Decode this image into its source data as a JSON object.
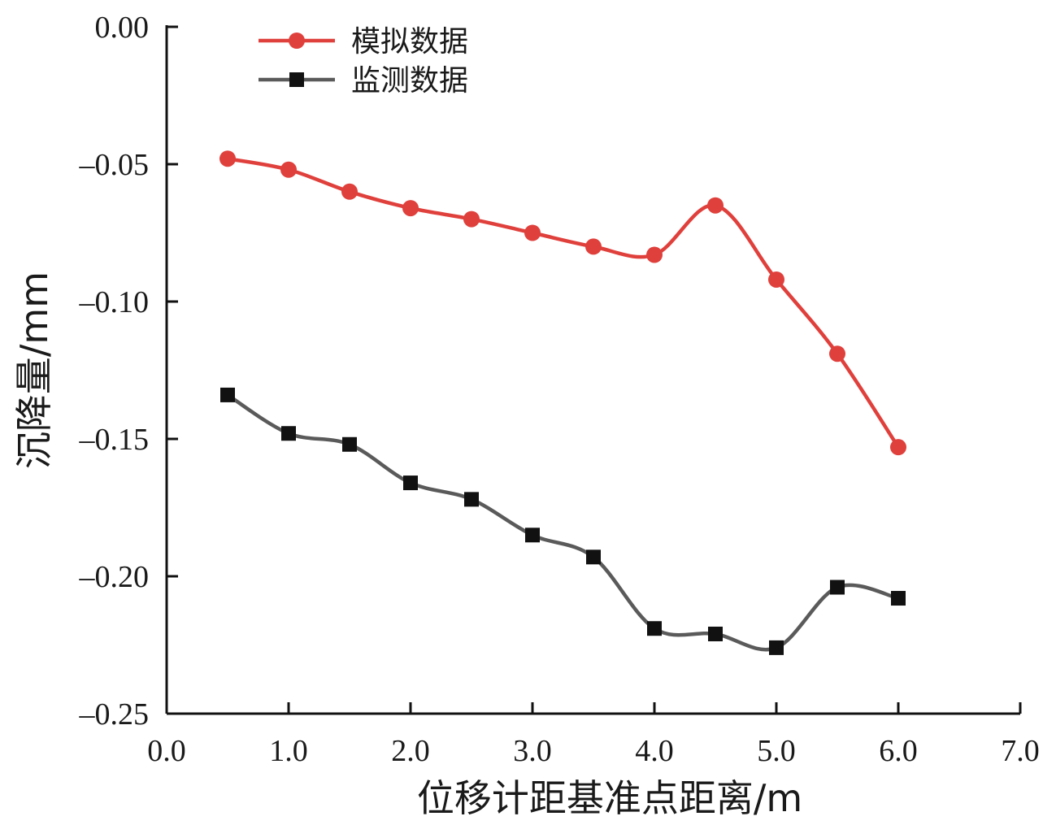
{
  "chart_data": {
    "type": "line",
    "xlabel": "位移计距基准点距离/m",
    "ylabel": "沉降量/mm",
    "xlim": [
      0.0,
      7.0
    ],
    "ylim": [
      -0.25,
      0.0
    ],
    "x_ticks": [
      "0.0",
      "1.0",
      "2.0",
      "3.0",
      "4.0",
      "5.0",
      "6.0",
      "7.0"
    ],
    "y_ticks": [
      "0.00",
      "–0.05",
      "–0.10",
      "–0.15",
      "–0.20",
      "–0.25"
    ],
    "grid": false,
    "legend_position": "top-left",
    "x": [
      0.5,
      1.0,
      1.5,
      2.0,
      2.5,
      3.0,
      3.5,
      4.0,
      4.5,
      5.0,
      5.5,
      6.0
    ],
    "series": [
      {
        "name": "模拟数据",
        "color": "#e0403c",
        "marker": "circle",
        "values": [
          -0.048,
          -0.052,
          -0.06,
          -0.066,
          -0.07,
          -0.075,
          -0.08,
          -0.083,
          -0.065,
          -0.092,
          -0.119,
          -0.153
        ]
      },
      {
        "name": "监测数据",
        "color": "#5a5a5a",
        "marker": "square",
        "values": [
          -0.134,
          -0.148,
          -0.152,
          -0.166,
          -0.172,
          -0.185,
          -0.193,
          -0.219,
          -0.221,
          -0.226,
          -0.204,
          -0.208
        ]
      }
    ]
  }
}
